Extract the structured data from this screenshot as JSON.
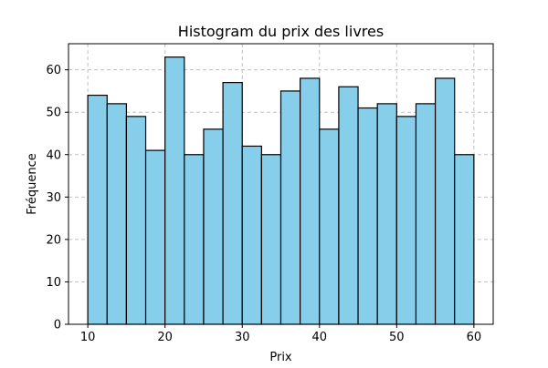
{
  "chart_data": {
    "type": "bar",
    "title": "Histogram du prix des livres",
    "xlabel": "Prix",
    "ylabel": "Fréquence",
    "bins": [
      [
        10.0,
        12.5
      ],
      [
        12.5,
        15.0
      ],
      [
        15.0,
        17.5
      ],
      [
        17.5,
        20.0
      ],
      [
        20.0,
        22.5
      ],
      [
        22.5,
        25.0
      ],
      [
        25.0,
        27.5
      ],
      [
        27.5,
        30.0
      ],
      [
        30.0,
        32.5
      ],
      [
        32.5,
        35.0
      ],
      [
        35.0,
        37.5
      ],
      [
        37.5,
        40.0
      ],
      [
        40.0,
        42.5
      ],
      [
        42.5,
        45.0
      ],
      [
        45.0,
        47.5
      ],
      [
        47.5,
        50.0
      ],
      [
        50.0,
        52.5
      ],
      [
        52.5,
        55.0
      ],
      [
        55.0,
        57.5
      ],
      [
        57.5,
        60.0
      ]
    ],
    "values": [
      54,
      52,
      49,
      41,
      63,
      40,
      46,
      57,
      42,
      40,
      55,
      58,
      46,
      56,
      51,
      52,
      49,
      52,
      58,
      40
    ],
    "xlim": [
      7.5,
      62.5
    ],
    "ylim": [
      0,
      66.15
    ],
    "xticks": [
      10,
      20,
      30,
      40,
      50,
      60
    ],
    "yticks": [
      0,
      10,
      20,
      30,
      40,
      50,
      60
    ],
    "grid": true,
    "colors": {
      "bar_fill": "#87ceeb",
      "bar_edge": "#000000",
      "grid": "#c0c0c0"
    }
  }
}
